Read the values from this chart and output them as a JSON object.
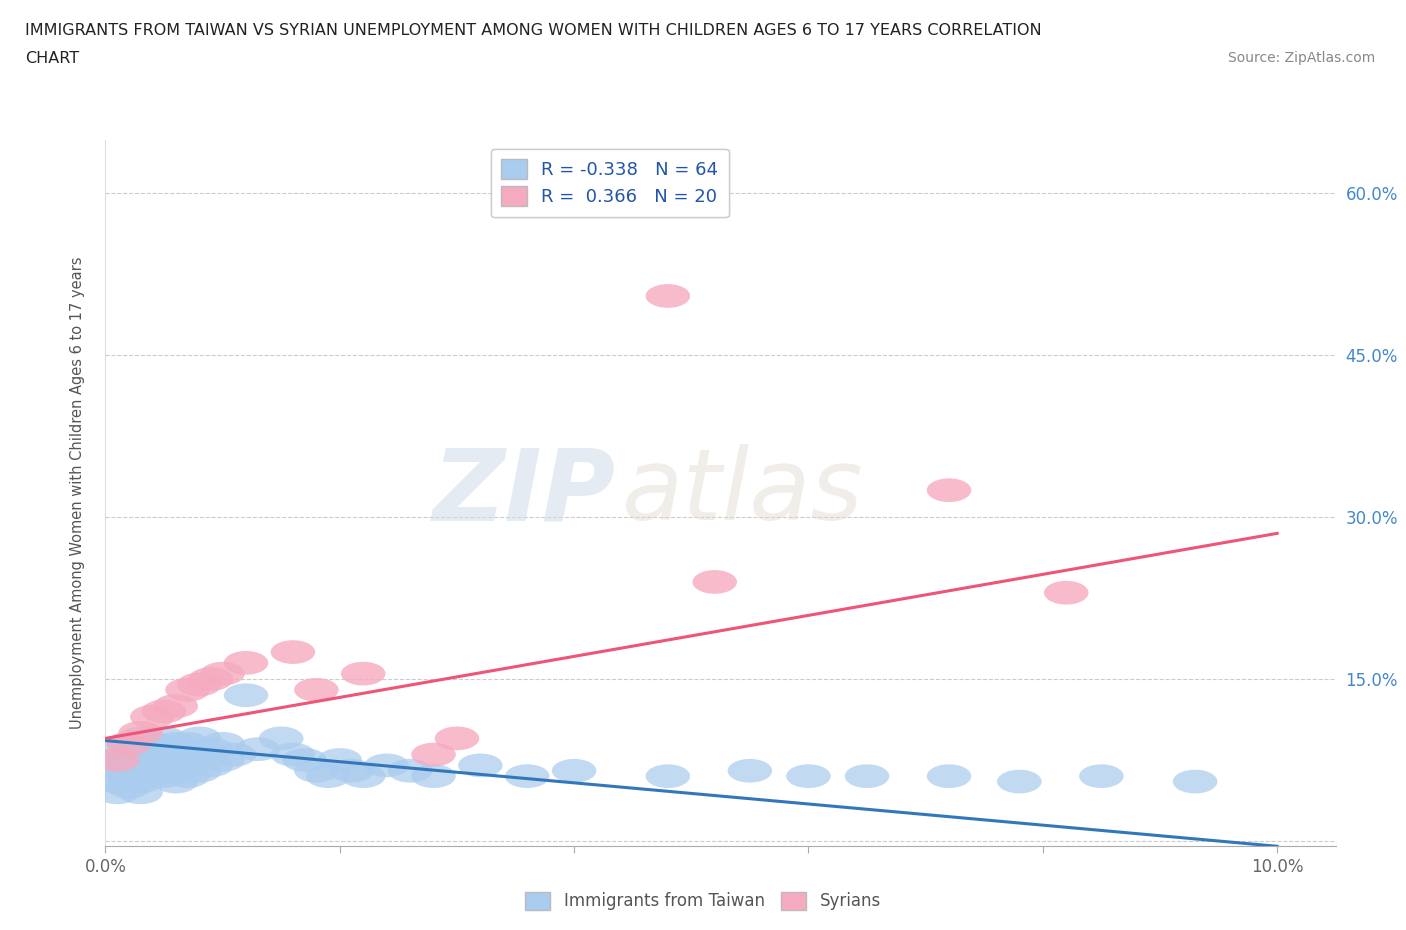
{
  "title_line1": "IMMIGRANTS FROM TAIWAN VS SYRIAN UNEMPLOYMENT AMONG WOMEN WITH CHILDREN AGES 6 TO 17 YEARS CORRELATION",
  "title_line2": "CHART",
  "source": "Source: ZipAtlas.com",
  "ylabel": "Unemployment Among Women with Children Ages 6 to 17 years",
  "xlim": [
    0.0,
    0.105
  ],
  "ylim": [
    -0.005,
    0.65
  ],
  "xtick_positions": [
    0.0,
    0.02,
    0.04,
    0.06,
    0.08,
    0.1
  ],
  "xticklabels": [
    "0.0%",
    "",
    "",
    "",
    "",
    "10.0%"
  ],
  "ytick_positions": [
    0.0,
    0.15,
    0.3,
    0.45,
    0.6
  ],
  "ytick_labels": [
    "",
    "15.0%",
    "30.0%",
    "45.0%",
    "60.0%"
  ],
  "taiwan_R": -0.338,
  "taiwan_N": 64,
  "syrian_R": 0.366,
  "syrian_N": 20,
  "taiwan_color": "#aaccee",
  "syrian_color": "#f5aabf",
  "taiwan_line_color": "#3377bb",
  "syrian_line_color": "#ee5577",
  "ytick_color": "#4488cc",
  "legend_taiwan_label": "Immigrants from Taiwan",
  "legend_syrian_label": "Syrians",
  "taiwan_line_x0": 0.0,
  "taiwan_line_y0": 0.093,
  "taiwan_line_x1": 0.1,
  "taiwan_line_y1": -0.005,
  "syrian_line_x0": 0.0,
  "syrian_line_y0": 0.095,
  "syrian_line_x1": 0.1,
  "syrian_line_y1": 0.285,
  "taiwan_x": [
    0.001,
    0.001,
    0.001,
    0.001,
    0.001,
    0.002,
    0.002,
    0.002,
    0.002,
    0.002,
    0.003,
    0.003,
    0.003,
    0.003,
    0.003,
    0.003,
    0.004,
    0.004,
    0.004,
    0.004,
    0.005,
    0.005,
    0.005,
    0.005,
    0.006,
    0.006,
    0.006,
    0.006,
    0.007,
    0.007,
    0.007,
    0.007,
    0.008,
    0.008,
    0.008,
    0.009,
    0.009,
    0.01,
    0.01,
    0.011,
    0.012,
    0.013,
    0.015,
    0.016,
    0.017,
    0.018,
    0.019,
    0.02,
    0.021,
    0.022,
    0.024,
    0.026,
    0.028,
    0.032,
    0.036,
    0.04,
    0.048,
    0.055,
    0.06,
    0.065,
    0.072,
    0.078,
    0.085,
    0.093
  ],
  "taiwan_y": [
    0.085,
    0.075,
    0.065,
    0.055,
    0.045,
    0.09,
    0.08,
    0.07,
    0.06,
    0.05,
    0.095,
    0.085,
    0.075,
    0.065,
    0.055,
    0.045,
    0.09,
    0.08,
    0.07,
    0.06,
    0.095,
    0.085,
    0.075,
    0.06,
    0.09,
    0.08,
    0.07,
    0.055,
    0.09,
    0.08,
    0.07,
    0.06,
    0.095,
    0.085,
    0.065,
    0.085,
    0.07,
    0.09,
    0.075,
    0.08,
    0.135,
    0.085,
    0.095,
    0.08,
    0.075,
    0.065,
    0.06,
    0.075,
    0.065,
    0.06,
    0.07,
    0.065,
    0.06,
    0.07,
    0.06,
    0.065,
    0.06,
    0.065,
    0.06,
    0.06,
    0.06,
    0.055,
    0.06,
    0.055
  ],
  "syrian_x": [
    0.001,
    0.002,
    0.003,
    0.004,
    0.005,
    0.006,
    0.007,
    0.008,
    0.009,
    0.01,
    0.012,
    0.016,
    0.018,
    0.022,
    0.028,
    0.03,
    0.048,
    0.052,
    0.072,
    0.082
  ],
  "syrian_y": [
    0.075,
    0.09,
    0.1,
    0.115,
    0.12,
    0.125,
    0.14,
    0.145,
    0.15,
    0.155,
    0.165,
    0.175,
    0.14,
    0.155,
    0.08,
    0.095,
    0.505,
    0.24,
    0.325,
    0.23
  ]
}
